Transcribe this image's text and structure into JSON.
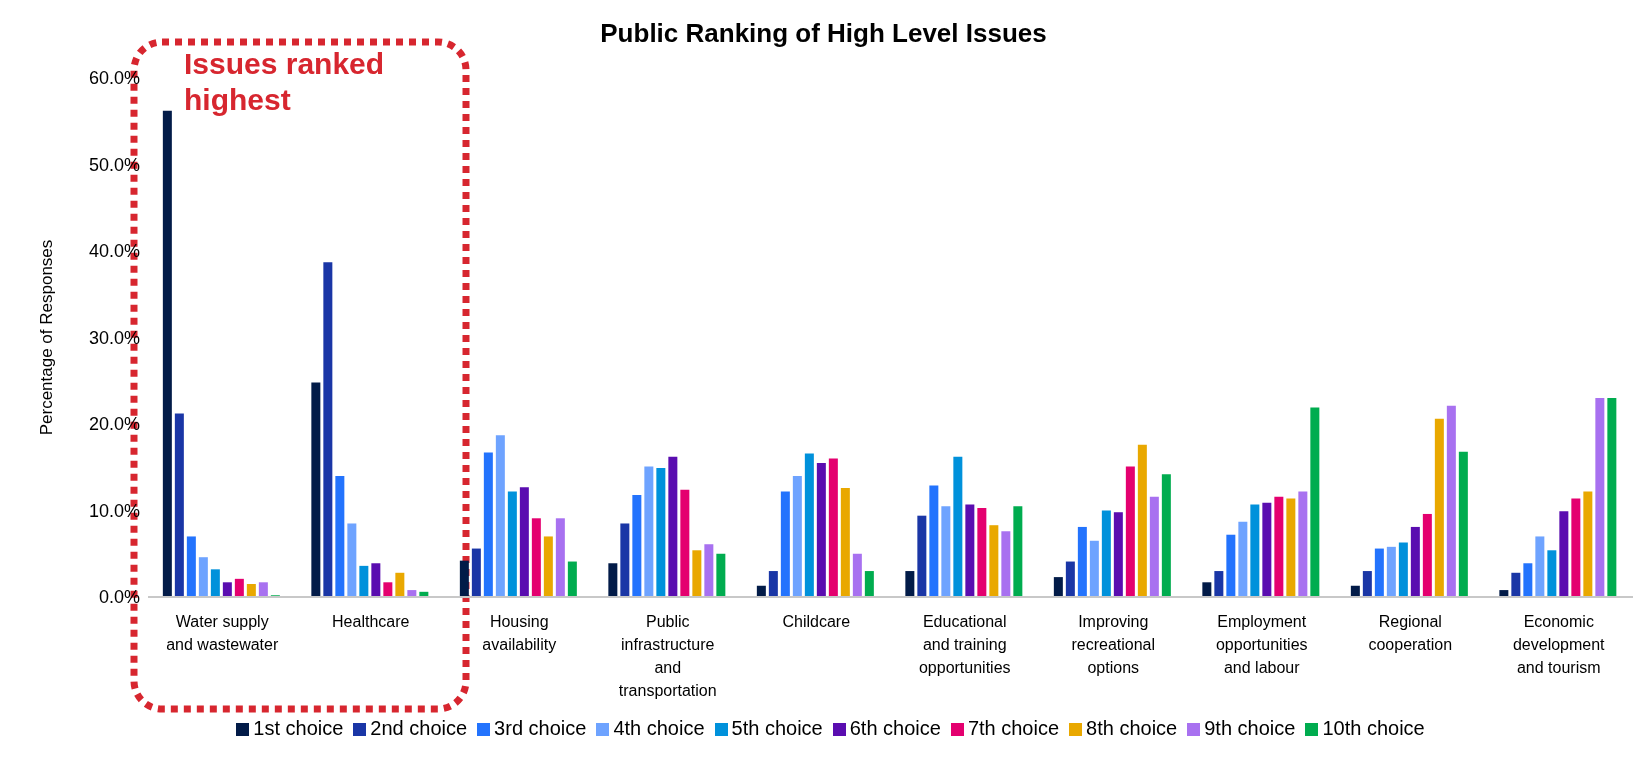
{
  "chart_data": {
    "type": "bar",
    "title": "Public Ranking of High Level Issues",
    "ylabel": "Percentage of Responses",
    "categories": [
      "Water supply and wastewater",
      "Healthcare",
      "Housing availability",
      "Public infrastructure and transportation",
      "Childcare",
      "Educational and training opportunities",
      "Improving recreational options",
      "Employment opportunities and labour",
      "Regional cooperation",
      "Economic development and tourism"
    ],
    "series": [
      {
        "name": "1st choice",
        "color": "#021b48",
        "values": [
          56.2,
          24.8,
          4.2,
          3.9,
          1.3,
          3.0,
          2.3,
          1.7,
          1.3,
          0.8
        ]
      },
      {
        "name": "2nd choice",
        "color": "#1a36a6",
        "values": [
          21.2,
          38.7,
          5.6,
          8.5,
          3.0,
          9.4,
          4.1,
          3.0,
          3.0,
          2.8
        ]
      },
      {
        "name": "3rd choice",
        "color": "#2373fd",
        "values": [
          7.0,
          14.0,
          16.7,
          11.8,
          12.2,
          12.9,
          8.1,
          7.2,
          5.6,
          3.9
        ]
      },
      {
        "name": "4th choice",
        "color": "#6ea3ff",
        "values": [
          4.6,
          8.5,
          18.7,
          15.1,
          14.0,
          10.5,
          6.5,
          8.7,
          5.8,
          7.0
        ]
      },
      {
        "name": "5th choice",
        "color": "#0091db",
        "values": [
          3.2,
          3.6,
          12.2,
          14.9,
          16.6,
          16.2,
          10.0,
          10.7,
          6.3,
          5.4
        ]
      },
      {
        "name": "6th choice",
        "color": "#5a0db0",
        "values": [
          1.7,
          3.9,
          12.7,
          16.2,
          15.5,
          10.7,
          9.8,
          10.9,
          8.1,
          9.9
        ]
      },
      {
        "name": "7th choice",
        "color": "#e4006f",
        "values": [
          2.1,
          1.7,
          9.1,
          12.4,
          16.0,
          10.3,
          15.1,
          11.6,
          9.6,
          11.4
        ]
      },
      {
        "name": "8th choice",
        "color": "#e9a800",
        "values": [
          1.5,
          2.8,
          7.0,
          5.4,
          12.6,
          8.3,
          17.6,
          11.4,
          20.6,
          12.2
        ]
      },
      {
        "name": "9th choice",
        "color": "#a871f0",
        "values": [
          1.7,
          0.8,
          9.1,
          6.1,
          5.0,
          7.6,
          11.6,
          12.2,
          22.1,
          23.0
        ]
      },
      {
        "name": "10th choice",
        "color": "#00ac4f",
        "values": [
          0.2,
          0.6,
          4.1,
          5.0,
          3.0,
          10.5,
          14.2,
          21.9,
          16.8,
          23.0
        ]
      }
    ],
    "ylim": [
      0,
      60
    ],
    "yticks": [
      {
        "value": 0,
        "label": "0.0%"
      },
      {
        "value": 10,
        "label": "10.0%"
      },
      {
        "value": 20,
        "label": "20.0%"
      },
      {
        "value": 30,
        "label": "30.0%"
      },
      {
        "value": 40,
        "label": "40.0%"
      },
      {
        "value": 50,
        "label": "50.0%"
      },
      {
        "value": 60,
        "label": "60.0%"
      }
    ],
    "annotations": [
      "Issues ranked highest"
    ],
    "grid": false,
    "legend": "bottom"
  }
}
